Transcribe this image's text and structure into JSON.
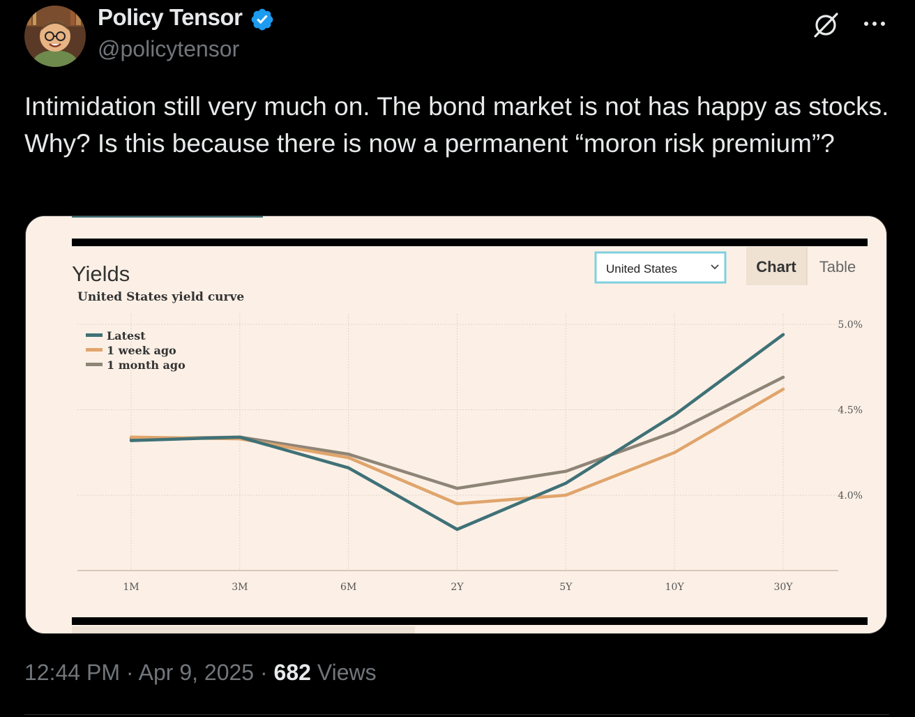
{
  "author": {
    "display_name": "Policy Tensor",
    "handle": "@policytensor",
    "verified": true,
    "verified_color": "#1d9bf0"
  },
  "icons": {
    "grok": "grok-icon",
    "more": "more-horizontal-icon",
    "verified": "verified-badge-icon"
  },
  "tweet": {
    "text": "Intimidation still very much on. The bond market is not has happy as stocks. Why? Is this because there is now a permanent “moron risk premium”?"
  },
  "footer": {
    "time": "12:44 PM",
    "sep1": " · ",
    "date": "Apr 9, 2025",
    "sep2": " · ",
    "views_count": "682",
    "views_label": " Views"
  },
  "embed": {
    "title": "Yields",
    "country_select": {
      "value": "United States"
    },
    "tabs": [
      {
        "label": "Chart",
        "active": true
      },
      {
        "label": "Table",
        "active": false
      }
    ],
    "colors": {
      "background": "#fcf0e6",
      "latest": "#3f7177",
      "week": "#e0a56c",
      "month": "#8e8577"
    }
  },
  "chart_data": {
    "type": "line",
    "subtitle": "United States yield curve",
    "categories": [
      "1M",
      "3M",
      "6M",
      "2Y",
      "5Y",
      "10Y",
      "30Y"
    ],
    "series": [
      {
        "name": "Latest",
        "color": "#3f7177",
        "values": [
          4.32,
          4.34,
          4.16,
          3.8,
          4.07,
          4.47,
          4.94
        ]
      },
      {
        "name": "1 week ago",
        "color": "#e0a56c",
        "values": [
          4.34,
          4.33,
          4.22,
          3.95,
          4.0,
          4.25,
          4.62
        ]
      },
      {
        "name": "1 month ago",
        "color": "#8e8577",
        "values": [
          4.33,
          4.34,
          4.24,
          4.04,
          4.14,
          4.37,
          4.69
        ]
      }
    ],
    "y_ticks": [
      "5.0%",
      "4.5%",
      "4.0%"
    ],
    "y_tick_values": [
      5.0,
      4.5,
      4.0
    ],
    "ylim": [
      3.5,
      5.0
    ],
    "grid": true,
    "legend_position": "top-left"
  }
}
